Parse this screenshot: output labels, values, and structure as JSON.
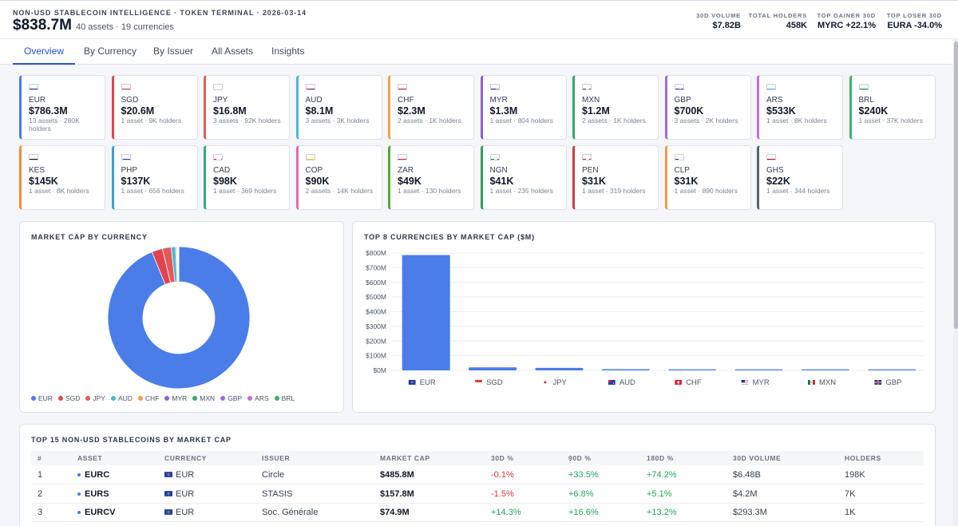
{
  "header": {
    "kicker": "NON-USD STABLECOIN INTELLIGENCE · TOKEN TERMINAL · 2026-03-14",
    "total": "$838.7M",
    "summary": "40 assets · 19 currencies",
    "stats": [
      {
        "label": "30D VOLUME",
        "value": "$7.82B"
      },
      {
        "label": "TOTAL HOLDERS",
        "value": "458K"
      },
      {
        "label": "TOP GAINER 30D",
        "value": "MYRC +22.1%"
      },
      {
        "label": "TOP LOSER 30D",
        "value": "EURA -34.0%"
      }
    ]
  },
  "tabs": [
    "Overview",
    "By Currency",
    "By Issuer",
    "All Assets",
    "Insights"
  ],
  "active_tab": "Overview",
  "currency_cards": [
    {
      "code": "EUR",
      "amount": "$786.3M",
      "meta": "13 assets · 280K holders",
      "color": "#4a7de8"
    },
    {
      "code": "SGD",
      "amount": "$20.6M",
      "meta": "1 asset · 9K holders",
      "color": "#e0454f"
    },
    {
      "code": "JPY",
      "amount": "$16.8M",
      "meta": "3 assets · 92K holders",
      "color": "#e25a5a"
    },
    {
      "code": "AUD",
      "amount": "$8.1M",
      "meta": "3 assets · 3K holders",
      "color": "#4cb6d9"
    },
    {
      "code": "CHF",
      "amount": "$2.3M",
      "meta": "2 assets · 1K holders",
      "color": "#f0a04a"
    },
    {
      "code": "MYR",
      "amount": "$1.3M",
      "meta": "1 asset · 804 holders",
      "color": "#8d5fd3"
    },
    {
      "code": "MXN",
      "amount": "$1.2M",
      "meta": "2 assets · 1K holders",
      "color": "#34a56a"
    },
    {
      "code": "GBP",
      "amount": "$700K",
      "meta": "3 assets · 2K holders",
      "color": "#9b6be0"
    },
    {
      "code": "ARS",
      "amount": "$533K",
      "meta": "1 asset · 8K holders",
      "color": "#c86bd9"
    },
    {
      "code": "BRL",
      "amount": "$240K",
      "meta": "1 asset · 37K holders",
      "color": "#3fb070"
    },
    {
      "code": "KES",
      "amount": "$145K",
      "meta": "1 asset · 8K holders",
      "color": "#f08a3c"
    },
    {
      "code": "PHP",
      "amount": "$137K",
      "meta": "1 asset · 656 holders",
      "color": "#3da0d8"
    },
    {
      "code": "CAD",
      "amount": "$98K",
      "meta": "1 asset · 369 holders",
      "color": "#2fae7a"
    },
    {
      "code": "COP",
      "amount": "$90K",
      "meta": "2 assets · 14K holders",
      "color": "#e56aa3"
    },
    {
      "code": "ZAR",
      "amount": "$49K",
      "meta": "1 asset · 130 holders",
      "color": "#5aa83a"
    },
    {
      "code": "NGN",
      "amount": "$41K",
      "meta": "1 asset · 235 holders",
      "color": "#2f9e5b"
    },
    {
      "code": "PEN",
      "amount": "$31K",
      "meta": "1 asset · 319 holders",
      "color": "#c94040"
    },
    {
      "code": "CLP",
      "amount": "$31K",
      "meta": "1 asset · 890 holders",
      "color": "#f39a46"
    },
    {
      "code": "GHS",
      "amount": "$22K",
      "meta": "1 asset · 344 holders",
      "color": "#5b616c"
    }
  ],
  "donut": {
    "title": "MARKET CAP BY CURRENCY",
    "legend": [
      "EUR",
      "SGD",
      "JPY",
      "AUD",
      "CHF",
      "MYR",
      "MXN",
      "GBP",
      "ARS",
      "BRL"
    ],
    "colors": [
      "#4a7de8",
      "#e0454f",
      "#e25a5a",
      "#4cb6d9",
      "#f0a04a",
      "#8d5fd3",
      "#34a56a",
      "#9b6be0",
      "#c86bd9",
      "#3fb070"
    ]
  },
  "chart_data": [
    {
      "type": "pie",
      "title": "MARKET CAP BY CURRENCY",
      "categories": [
        "EUR",
        "SGD",
        "JPY",
        "AUD",
        "CHF",
        "MYR",
        "MXN",
        "GBP",
        "ARS",
        "BRL"
      ],
      "values": [
        786.3,
        20.6,
        16.8,
        8.1,
        2.3,
        1.3,
        1.2,
        0.7,
        0.533,
        0.24
      ],
      "unit": "$M"
    },
    {
      "type": "bar",
      "title": "TOP 8 CURRENCIES BY MARKET CAP ($M)",
      "categories": [
        "EUR",
        "SGD",
        "JPY",
        "AUD",
        "CHF",
        "MYR",
        "MXN",
        "GBP"
      ],
      "values": [
        786.3,
        20.6,
        16.8,
        8.1,
        2.3,
        1.3,
        1.2,
        0.7
      ],
      "ylim": [
        0,
        800
      ],
      "yticks": [
        "$0M",
        "$100M",
        "$200M",
        "$300M",
        "$400M",
        "$500M",
        "$600M",
        "$700M",
        "$800M"
      ],
      "xlabel": "",
      "ylabel": ""
    }
  ],
  "table": {
    "title": "TOP 15 NON-USD STABLECOINS BY MARKET CAP",
    "columns": [
      "#",
      "ASSET",
      "CURRENCY",
      "ISSUER",
      "MARKET CAP",
      "30D %",
      "90D %",
      "180D %",
      "30D VOLUME",
      "HOLDERS"
    ],
    "rows": [
      {
        "rank": "1",
        "asset": "EURC",
        "currency": "EUR",
        "issuer": "Circle",
        "mcap": "$485.8M",
        "d30": "-0.1%",
        "d90": "+33.5%",
        "d180": "+74.2%",
        "vol": "$6.48B",
        "holders": "198K"
      },
      {
        "rank": "2",
        "asset": "EURS",
        "currency": "EUR",
        "issuer": "STASIS",
        "mcap": "$157.8M",
        "d30": "-1.5%",
        "d90": "+6.8%",
        "d180": "+5.1%",
        "vol": "$4.2M",
        "holders": "7K"
      },
      {
        "rank": "3",
        "asset": "EURCV",
        "currency": "EUR",
        "issuer": "Soc. Générale",
        "mcap": "$74.9M",
        "d30": "+14.3%",
        "d90": "+16.6%",
        "d180": "+13.2%",
        "vol": "$293.3M",
        "holders": "1K"
      }
    ]
  }
}
